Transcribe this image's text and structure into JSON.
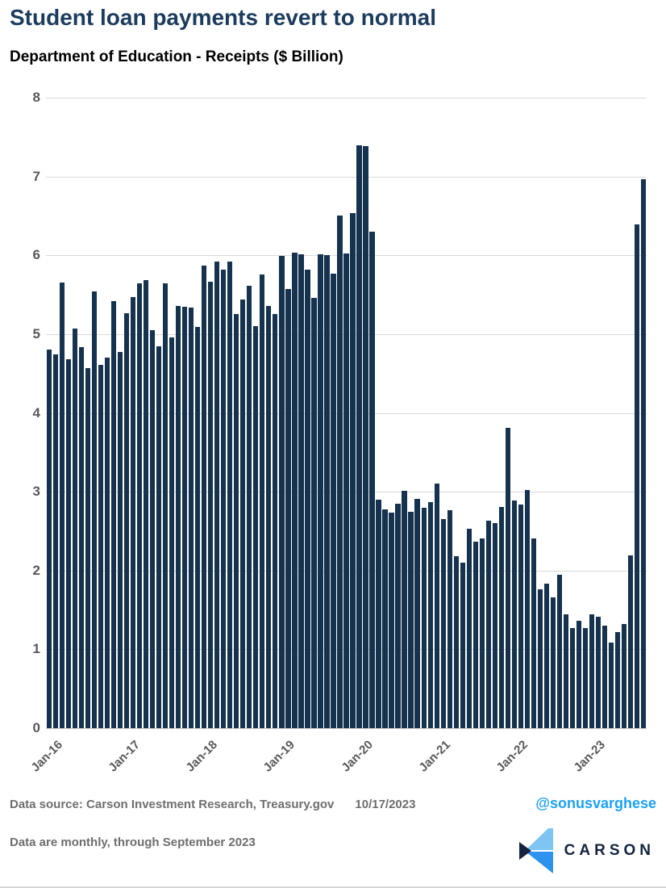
{
  "title": "Student loan payments revert to normal",
  "subtitle": "Department of Education - Receipts ($ Billion)",
  "footer": {
    "source": "Data source: Carson Investment Research, Treasury.gov",
    "date": "10/17/2023",
    "note": "Data are monthly, through September 2023",
    "handle": "@sonusvarghese",
    "logo_text": "CARSON"
  },
  "colors": {
    "bar": "#15324e",
    "title": "#1c3c5e",
    "axis_label": "#595959",
    "gridline": "#d9d9d9",
    "handle": "#1da1f2",
    "logo_navy": "#15233f",
    "logo_light_blue": "#7ec5f3",
    "logo_mid_blue": "#2d93ee"
  },
  "chart_data": {
    "type": "bar",
    "title": "Department of Education - Receipts ($ Billion)",
    "xlabel": "",
    "ylabel": "",
    "ylim": [
      0,
      8
    ],
    "yticks": [
      0,
      1,
      2,
      3,
      4,
      5,
      6,
      7,
      8
    ],
    "grid": "horizontal",
    "frequency": "monthly",
    "period": "Jan-2016 through Sep-2023",
    "x_ticks": [
      {
        "index": 0,
        "label": "Jan-16"
      },
      {
        "index": 12,
        "label": "Jan-17"
      },
      {
        "index": 24,
        "label": "Jan-18"
      },
      {
        "index": 36,
        "label": "Jan-19"
      },
      {
        "index": 48,
        "label": "Jan-20"
      },
      {
        "index": 60,
        "label": "Jan-21"
      },
      {
        "index": 72,
        "label": "Jan-22"
      },
      {
        "index": 84,
        "label": "Jan-23"
      }
    ],
    "values": [
      4.8,
      4.74,
      5.65,
      4.68,
      5.07,
      4.83,
      4.57,
      5.54,
      4.61,
      4.7,
      5.42,
      4.77,
      5.27,
      5.47,
      5.64,
      5.69,
      5.05,
      4.85,
      5.64,
      4.96,
      5.36,
      5.35,
      5.34,
      5.09,
      5.87,
      5.66,
      5.92,
      5.82,
      5.92,
      5.26,
      5.44,
      5.61,
      5.1,
      5.76,
      5.36,
      5.26,
      5.99,
      5.57,
      6.03,
      6.01,
      5.82,
      5.46,
      6.01,
      6.0,
      5.77,
      6.5,
      6.02,
      6.54,
      7.4,
      7.39,
      6.3,
      2.9,
      2.78,
      2.74,
      2.85,
      3.01,
      2.75,
      2.91,
      2.8,
      2.87,
      3.1,
      2.65,
      2.77,
      2.18,
      2.1,
      2.53,
      2.37,
      2.41,
      2.63,
      2.6,
      2.81,
      3.81,
      2.89,
      2.84,
      3.02,
      2.41,
      1.76,
      1.83,
      1.66,
      1.95,
      1.44,
      1.27,
      1.36,
      1.27,
      1.44,
      1.41,
      1.3,
      1.09,
      1.22,
      1.32,
      2.19,
      6.39,
      6.97
    ]
  }
}
